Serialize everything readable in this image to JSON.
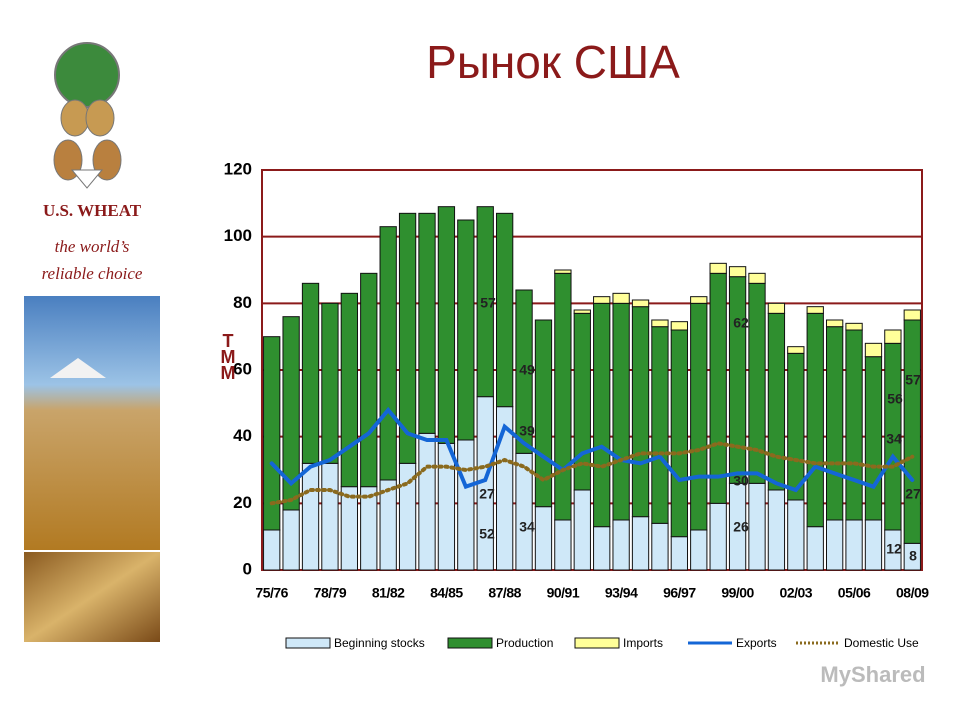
{
  "logo": {
    "name": "U.S. WHEAT",
    "tagline": [
      "the world’s",
      "reliable choice"
    ]
  },
  "watermark": "MyShared",
  "chart_data": {
    "type": "bar",
    "stacked": true,
    "title": "Рынок США",
    "y_label": [
      "Т",
      "М",
      "М"
    ],
    "categories": [
      "75/76",
      null,
      null,
      "78/79",
      null,
      null,
      "81/82",
      null,
      null,
      "84/85",
      null,
      null,
      "87/88",
      null,
      null,
      "90/91",
      null,
      null,
      "93/94",
      null,
      null,
      "96/97",
      null,
      null,
      "99/00",
      null,
      null,
      "02/03",
      null,
      null,
      "05/06",
      null,
      null,
      "08/09"
    ],
    "ylim": [
      0,
      120
    ],
    "yticks": [
      0,
      20,
      40,
      60,
      80,
      100,
      120
    ],
    "grid": true,
    "series": [
      {
        "name": "Beginning stocks",
        "type": "bar",
        "color": "#cfe8f8",
        "values": [
          12,
          18,
          32,
          32,
          25,
          25,
          27,
          32,
          41,
          38,
          39,
          52,
          49,
          35,
          19,
          15,
          24,
          13,
          15,
          16,
          14,
          10,
          12,
          20,
          26,
          26,
          24,
          21,
          13,
          15,
          15,
          15,
          12,
          8
        ]
      },
      {
        "name": "Production",
        "type": "bar",
        "color": "#2f8f2f",
        "values": [
          58,
          58,
          54,
          48,
          58,
          64,
          76,
          75,
          66,
          71,
          66,
          57,
          58,
          49,
          56,
          74,
          53,
          67,
          65,
          63,
          59,
          62,
          68,
          69,
          62,
          60,
          53,
          44,
          64,
          58,
          57,
          49,
          56,
          67
        ]
      },
      {
        "name": "Imports",
        "type": "bar",
        "color": "#ffff99",
        "values": [
          0,
          0,
          0,
          0,
          0,
          0,
          0,
          0,
          0,
          0,
          0,
          0,
          0,
          0,
          0,
          1,
          1,
          2,
          3,
          2,
          2,
          2.5,
          2,
          3,
          3,
          3,
          3,
          2,
          2,
          2,
          2,
          4,
          4,
          3
        ]
      },
      {
        "name": "Exports",
        "type": "line",
        "color": "#1466d6",
        "values": [
          32,
          26,
          31,
          33,
          37,
          41,
          48,
          41,
          39,
          39,
          25,
          27,
          43,
          38,
          34,
          30,
          35,
          37,
          33,
          32,
          34,
          27,
          28,
          28,
          29,
          29,
          26,
          24,
          31,
          29,
          27,
          25,
          34,
          27
        ]
      },
      {
        "name": "Domestic Use",
        "type": "line",
        "dashed": true,
        "color": "#8a6a1e",
        "values": [
          20,
          21,
          24,
          24,
          22,
          22,
          24,
          26,
          31,
          31,
          30,
          31,
          33,
          31,
          27,
          30,
          32,
          31,
          33,
          35,
          35,
          35,
          36,
          38,
          37,
          36,
          34,
          33,
          32,
          32,
          32,
          31,
          31,
          34
        ]
      }
    ],
    "annotations": [
      "57",
      "49",
      "39",
      "27",
      "52",
      "34",
      "62",
      "30",
      "26",
      "56",
      "57",
      "34",
      "27",
      "12",
      "8"
    ]
  }
}
